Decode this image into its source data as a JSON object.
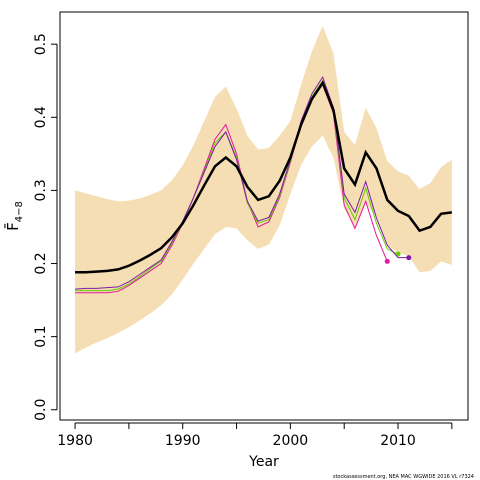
{
  "chart_data": {
    "type": "line",
    "xlabel": "Year",
    "ylabel": "F̄",
    "ylabel_sub": "4−8",
    "source": "stockassessment.org, NEA MAC WGWIDE 2016 VL r7324",
    "xlim": [
      1978.6,
      2016.5
    ],
    "ylim": [
      -0.014,
      0.544
    ],
    "xticks": [
      1980,
      1990,
      2000,
      2010
    ],
    "xminor": [
      1985,
      1995,
      2005,
      2015
    ],
    "yticks": [
      {
        "value": 0,
        "label": "0.0"
      },
      0.1,
      0.2,
      0.3,
      0.4,
      0.5
    ],
    "x": [
      1980,
      1981,
      1982,
      1983,
      1984,
      1985,
      1986,
      1987,
      1988,
      1989,
      1990,
      1991,
      1992,
      1993,
      1994,
      1995,
      1996,
      1997,
      1998,
      1999,
      2000,
      2001,
      2002,
      2003,
      2004,
      2005,
      2006,
      2007,
      2008,
      2009,
      2010,
      2011,
      2012,
      2013,
      2014,
      2015
    ],
    "band": {
      "color": "#f5deb3",
      "upper": [
        0.3,
        0.296,
        0.292,
        0.288,
        0.285,
        0.286,
        0.289,
        0.294,
        0.3,
        0.314,
        0.334,
        0.362,
        0.395,
        0.428,
        0.442,
        0.412,
        0.375,
        0.356,
        0.358,
        0.375,
        0.395,
        0.445,
        0.49,
        0.525,
        0.487,
        0.38,
        0.362,
        0.413,
        0.385,
        0.34,
        0.326,
        0.32,
        0.302,
        0.31,
        0.332,
        0.342
      ],
      "lower": [
        0.077,
        0.085,
        0.092,
        0.098,
        0.105,
        0.113,
        0.122,
        0.132,
        0.143,
        0.158,
        0.178,
        0.2,
        0.22,
        0.24,
        0.25,
        0.248,
        0.232,
        0.22,
        0.226,
        0.252,
        0.295,
        0.335,
        0.36,
        0.375,
        0.345,
        0.275,
        0.25,
        0.282,
        0.265,
        0.225,
        0.215,
        0.21,
        0.188,
        0.19,
        0.203,
        0.198
      ]
    },
    "end_marker": true,
    "series": [
      {
        "color": "#e6149e",
        "values": [
          0.16,
          0.16,
          0.16,
          0.16,
          0.162,
          0.17,
          0.18,
          0.19,
          0.2,
          0.225,
          0.255,
          0.29,
          0.33,
          0.37,
          0.39,
          0.35,
          0.285,
          0.25,
          0.257,
          0.29,
          0.338,
          0.39,
          0.425,
          0.445,
          0.405,
          0.28,
          0.248,
          0.285,
          0.238,
          0.203,
          null,
          null,
          null,
          null,
          null,
          null
        ]
      },
      {
        "color": "#66cc00",
        "values": [
          0.163,
          0.163,
          0.163,
          0.163,
          0.165,
          0.172,
          0.182,
          0.193,
          0.203,
          0.228,
          0.257,
          0.29,
          0.327,
          0.365,
          0.38,
          0.345,
          0.283,
          0.255,
          0.26,
          0.292,
          0.34,
          0.392,
          0.428,
          0.45,
          0.41,
          0.29,
          0.26,
          0.303,
          0.255,
          0.22,
          0.213,
          null,
          null,
          null,
          null,
          null
        ]
      },
      {
        "color": "#7f1aa8",
        "values": [
          0.165,
          0.166,
          0.166,
          0.167,
          0.168,
          0.175,
          0.185,
          0.195,
          0.205,
          0.23,
          0.258,
          0.29,
          0.325,
          0.36,
          0.38,
          0.342,
          0.285,
          0.258,
          0.263,
          0.295,
          0.342,
          0.395,
          0.432,
          0.455,
          0.413,
          0.295,
          0.27,
          0.312,
          0.262,
          0.225,
          0.208,
          0.208,
          null,
          null,
          null,
          null
        ]
      },
      {
        "color": "#000000",
        "width": 2.5,
        "values": [
          0.188,
          0.188,
          0.189,
          0.19,
          0.192,
          0.197,
          0.204,
          0.212,
          0.221,
          0.236,
          0.255,
          0.28,
          0.307,
          0.333,
          0.345,
          0.333,
          0.305,
          0.287,
          0.292,
          0.313,
          0.345,
          0.39,
          0.425,
          0.447,
          0.41,
          0.33,
          0.308,
          0.352,
          0.33,
          0.287,
          0.272,
          0.265,
          0.245,
          0.25,
          0.268,
          0.27
        ]
      }
    ]
  }
}
